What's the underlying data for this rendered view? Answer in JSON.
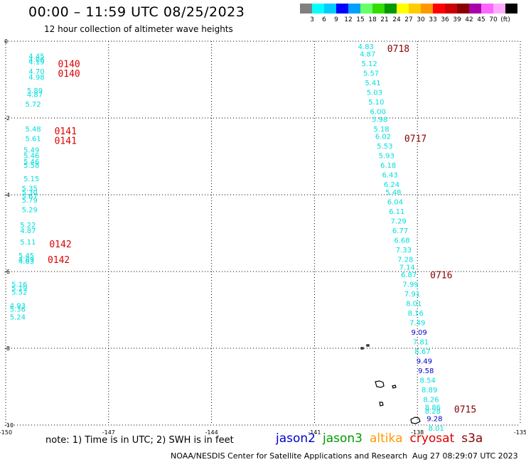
{
  "header": {
    "title": "00:00 – 11:59 UTC 08/25/2023",
    "subtitle": "12 hour collection of altimeter wave heights"
  },
  "colorbar": {
    "colors": [
      "#808080",
      "#00ffff",
      "#00ccff",
      "#0000ff",
      "#00a0ff",
      "#66ff66",
      "#33dd00",
      "#009900",
      "#ffff00",
      "#ffcc00",
      "#ff9900",
      "#ff0000",
      "#cc0000",
      "#880000",
      "#aa00aa",
      "#ff66ff",
      "#ffaaff",
      "#000000"
    ],
    "labels": [
      "3",
      "6",
      "9",
      "12",
      "15",
      "18",
      "21",
      "24",
      "27",
      "30",
      "33",
      "36",
      "39",
      "42",
      "45",
      "70",
      "(ft)"
    ]
  },
  "axes": {
    "lon_ticks": [
      "-150",
      "-147",
      "-144",
      "-141",
      "-138",
      "-135"
    ],
    "lat_ticks": [
      "0",
      "-2",
      "-4",
      "-6",
      "-8",
      "-10"
    ]
  },
  "note": "note:  1) Time is in UTC;  2) SWH is in feet",
  "legend": [
    {
      "name": "jason2",
      "color": "#0000cc"
    },
    {
      "name": "jason3",
      "color": "#009900"
    },
    {
      "name": "altika",
      "color": "#ff9900"
    },
    {
      "name": "cryosat",
      "color": "#dd0000"
    },
    {
      "name": "s3a",
      "color": "#880000"
    }
  ],
  "footer": {
    "center": "NOAA/NESDIS Center for Satellite Applications and Research",
    "right": "Aug 27 08:29:07 UTC 2023"
  },
  "tracks": [
    {
      "name": "west-track",
      "time_color": "#dd0000",
      "times": [
        {
          "lat": -0.6,
          "text": "0140"
        },
        {
          "lat": -0.85,
          "text": "0140"
        },
        {
          "lat": -2.35,
          "text": "0141"
        },
        {
          "lat": -2.6,
          "text": "0141"
        },
        {
          "lat": -5.3,
          "text": "0142"
        },
        {
          "lat": -5.7,
          "text": "0142"
        }
      ],
      "points": [
        {
          "lon": -149.1,
          "lat": -0.45,
          "v": "4.45",
          "c": "#00dddd"
        },
        {
          "lon": -149.1,
          "lat": -0.55,
          "v": "4.06",
          "c": "#00dddd"
        },
        {
          "lon": -149.1,
          "lat": -0.6,
          "v": "4.19",
          "c": "#00dddd"
        },
        {
          "lon": -149.1,
          "lat": -0.85,
          "v": "4.70",
          "c": "#00dddd"
        },
        {
          "lon": -149.1,
          "lat": -1.0,
          "v": "4.98",
          "c": "#00dddd"
        },
        {
          "lon": -149.15,
          "lat": -1.35,
          "v": "5.89",
          "c": "#00dddd"
        },
        {
          "lon": -149.15,
          "lat": -1.45,
          "v": "4.87",
          "c": "#00dddd"
        },
        {
          "lon": -149.2,
          "lat": -1.7,
          "v": "5.72",
          "c": "#00dddd"
        },
        {
          "lon": -149.2,
          "lat": -2.35,
          "v": "5.48",
          "c": "#00dddd"
        },
        {
          "lon": -149.2,
          "lat": -2.6,
          "v": "5.61",
          "c": "#00dddd"
        },
        {
          "lon": -149.25,
          "lat": -2.9,
          "v": "5.49",
          "c": "#00dddd"
        },
        {
          "lon": -149.25,
          "lat": -3.05,
          "v": "5.46",
          "c": "#00dddd"
        },
        {
          "lon": -149.25,
          "lat": -3.2,
          "v": "5.46",
          "c": "#00dddd"
        },
        {
          "lon": -149.25,
          "lat": -3.3,
          "v": "5.58",
          "c": "#00dddd"
        },
        {
          "lon": -149.25,
          "lat": -3.65,
          "v": "5.15",
          "c": "#00dddd"
        },
        {
          "lon": -149.3,
          "lat": -3.9,
          "v": "5.35",
          "c": "#00dddd"
        },
        {
          "lon": -149.3,
          "lat": -4.0,
          "v": "5.30",
          "c": "#00dddd"
        },
        {
          "lon": -149.3,
          "lat": -4.1,
          "v": "5.67",
          "c": "#00dddd"
        },
        {
          "lon": -149.3,
          "lat": -4.2,
          "v": "5.79",
          "c": "#00dddd"
        },
        {
          "lon": -149.3,
          "lat": -4.45,
          "v": "5.29",
          "c": "#00dddd"
        },
        {
          "lon": -149.35,
          "lat": -4.85,
          "v": "5.22",
          "c": "#00dddd"
        },
        {
          "lon": -149.35,
          "lat": -5.0,
          "v": "4.87",
          "c": "#00dddd"
        },
        {
          "lon": -149.35,
          "lat": -5.3,
          "v": "5.11",
          "c": "#00dddd"
        },
        {
          "lon": -149.4,
          "lat": -5.65,
          "v": "5.45",
          "c": "#00dddd"
        },
        {
          "lon": -149.4,
          "lat": -5.75,
          "v": "4.89",
          "c": "#00dddd"
        },
        {
          "lon": -149.4,
          "lat": -5.8,
          "v": "4.83",
          "c": "#00dddd"
        },
        {
          "lon": -149.6,
          "lat": -6.4,
          "v": "5.16",
          "c": "#00dddd"
        },
        {
          "lon": -149.6,
          "lat": -6.5,
          "v": "5.19",
          "c": "#00dddd"
        },
        {
          "lon": -149.6,
          "lat": -6.6,
          "v": "5.52",
          "c": "#00dddd"
        },
        {
          "lon": -149.65,
          "lat": -6.95,
          "v": "4.93",
          "c": "#00dddd"
        },
        {
          "lon": -149.65,
          "lat": -7.05,
          "v": "5.36",
          "c": "#00dddd"
        },
        {
          "lon": -149.65,
          "lat": -7.25,
          "v": "5.24",
          "c": "#00dddd"
        }
      ]
    },
    {
      "name": "east-track",
      "time_color": "#880000",
      "times": [
        {
          "lat": -0.2,
          "text": "0718"
        },
        {
          "lat": -2.55,
          "text": "0717"
        },
        {
          "lat": -6.1,
          "text": "0716"
        },
        {
          "lat": -9.6,
          "text": "0715"
        }
      ],
      "points": [
        {
          "lon": -139.5,
          "lat": -0.2,
          "v": "4.83",
          "c": "#00dddd"
        },
        {
          "lon": -139.45,
          "lat": -0.4,
          "v": "4.87",
          "c": "#00dddd"
        },
        {
          "lon": -139.4,
          "lat": -0.65,
          "v": "5.12",
          "c": "#00dddd"
        },
        {
          "lon": -139.35,
          "lat": -0.9,
          "v": "5.57",
          "c": "#00dddd"
        },
        {
          "lon": -139.3,
          "lat": -1.15,
          "v": "5.41",
          "c": "#00dddd"
        },
        {
          "lon": -139.25,
          "lat": -1.4,
          "v": "5.03",
          "c": "#00dddd"
        },
        {
          "lon": -139.2,
          "lat": -1.65,
          "v": "5.10",
          "c": "#00dddd"
        },
        {
          "lon": -139.15,
          "lat": -1.9,
          "v": "6.00",
          "c": "#00dddd"
        },
        {
          "lon": -139.1,
          "lat": -2.1,
          "v": "5.98",
          "c": "#00dddd"
        },
        {
          "lon": -139.05,
          "lat": -2.35,
          "v": "5.18",
          "c": "#00dddd"
        },
        {
          "lon": -139.0,
          "lat": -2.55,
          "v": "6.02",
          "c": "#00dddd"
        },
        {
          "lon": -138.95,
          "lat": -2.8,
          "v": "5.53",
          "c": "#00dddd"
        },
        {
          "lon": -138.9,
          "lat": -3.05,
          "v": "5.93",
          "c": "#00dddd"
        },
        {
          "lon": -138.85,
          "lat": -3.3,
          "v": "6.18",
          "c": "#00dddd"
        },
        {
          "lon": -138.8,
          "lat": -3.55,
          "v": "6.43",
          "c": "#00dddd"
        },
        {
          "lon": -138.75,
          "lat": -3.8,
          "v": "6.24",
          "c": "#00dddd"
        },
        {
          "lon": -138.7,
          "lat": -4.0,
          "v": "5.48",
          "c": "#00dddd"
        },
        {
          "lon": -138.65,
          "lat": -4.25,
          "v": "6.04",
          "c": "#00dddd"
        },
        {
          "lon": -138.6,
          "lat": -4.5,
          "v": "6.11",
          "c": "#00dddd"
        },
        {
          "lon": -138.55,
          "lat": -4.75,
          "v": "7.29",
          "c": "#00dddd"
        },
        {
          "lon": -138.5,
          "lat": -5.0,
          "v": "6.77",
          "c": "#00dddd"
        },
        {
          "lon": -138.45,
          "lat": -5.25,
          "v": "6.68",
          "c": "#00dddd"
        },
        {
          "lon": -138.4,
          "lat": -5.5,
          "v": "7.33",
          "c": "#00dddd"
        },
        {
          "lon": -138.35,
          "lat": -5.75,
          "v": "7.28",
          "c": "#00dddd"
        },
        {
          "lon": -138.3,
          "lat": -5.95,
          "v": "7.14",
          "c": "#00dddd"
        },
        {
          "lon": -138.25,
          "lat": -6.15,
          "v": "6.87",
          "c": "#00dddd"
        },
        {
          "lon": -138.2,
          "lat": -6.4,
          "v": "7.99",
          "c": "#00dddd"
        },
        {
          "lon": -138.15,
          "lat": -6.65,
          "v": "7.91",
          "c": "#00dddd"
        },
        {
          "lon": -138.1,
          "lat": -6.9,
          "v": "8.01",
          "c": "#00dddd"
        },
        {
          "lon": -138.05,
          "lat": -7.15,
          "v": "8.16",
          "c": "#00dddd"
        },
        {
          "lon": -138.0,
          "lat": -7.4,
          "v": "7.49",
          "c": "#00dddd"
        },
        {
          "lon": -137.95,
          "lat": -7.65,
          "v": "9.09",
          "c": "#0000cc"
        },
        {
          "lon": -137.9,
          "lat": -7.9,
          "v": "7.81",
          "c": "#00dddd"
        },
        {
          "lon": -137.85,
          "lat": -8.15,
          "v": "8.67",
          "c": "#00dddd"
        },
        {
          "lon": -137.8,
          "lat": -8.4,
          "v": "9.49",
          "c": "#0000cc"
        },
        {
          "lon": -137.75,
          "lat": -8.65,
          "v": "9.58",
          "c": "#0000cc"
        },
        {
          "lon": -137.7,
          "lat": -8.9,
          "v": "8.54",
          "c": "#00dddd"
        },
        {
          "lon": -137.65,
          "lat": -9.15,
          "v": "8.89",
          "c": "#00dddd"
        },
        {
          "lon": -137.6,
          "lat": -9.4,
          "v": "8.26",
          "c": "#00dddd"
        },
        {
          "lon": -137.55,
          "lat": -9.6,
          "v": "8.86",
          "c": "#00dddd"
        },
        {
          "lon": -137.55,
          "lat": -9.7,
          "v": "8.28",
          "c": "#00dddd"
        },
        {
          "lon": -137.5,
          "lat": -9.9,
          "v": "9.28",
          "c": "#0000cc"
        },
        {
          "lon": -137.45,
          "lat": -10.15,
          "v": "8.01",
          "c": "#00dddd"
        }
      ]
    }
  ]
}
